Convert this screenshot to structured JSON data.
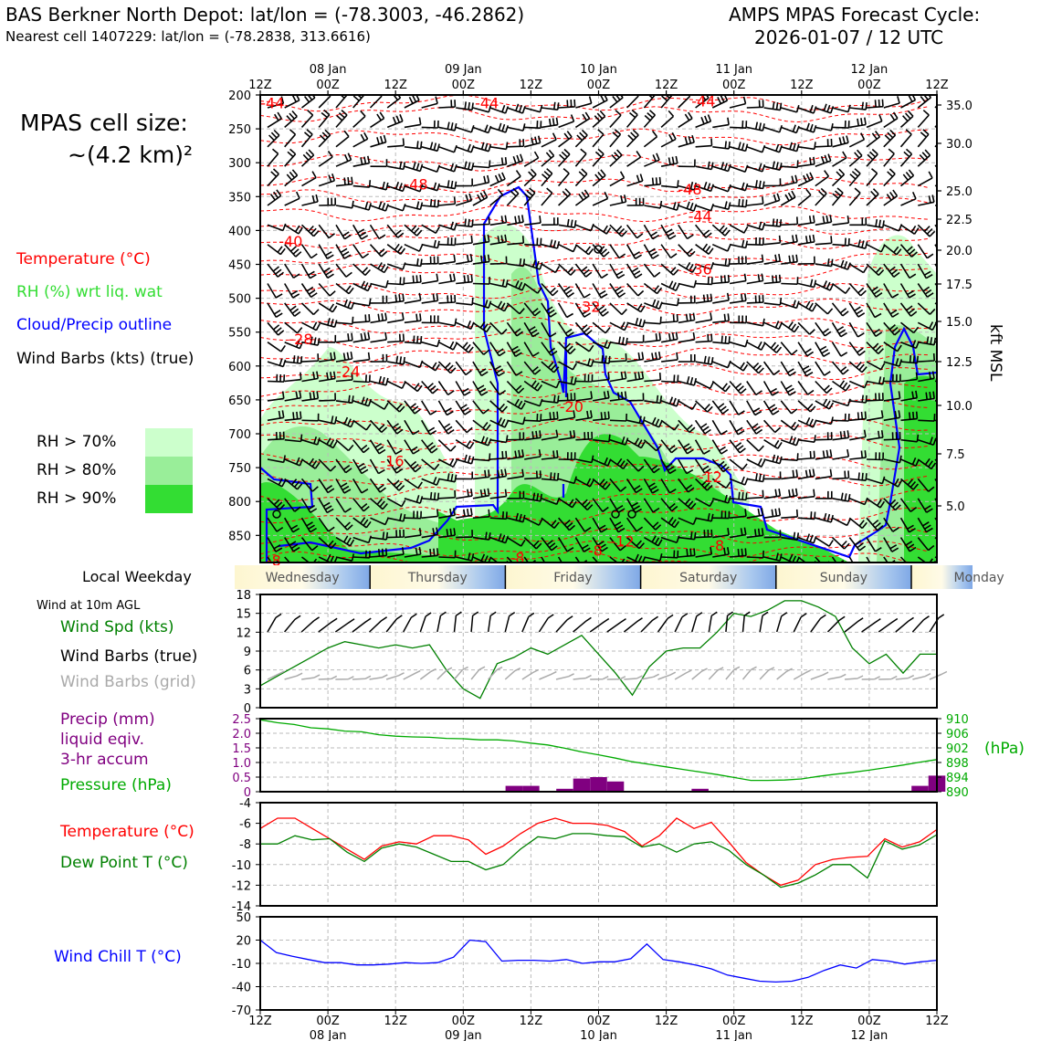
{
  "header": {
    "station": "BAS Berkner North Depot: lat/lon = (-78.3003, -46.2862)",
    "nearest": "Nearest cell 1407229: lat/lon = (-78.2838, 313.6616)",
    "model_line1": "AMPS MPAS Forecast Cycle:",
    "model_line2": "2026-01-07 / 12 UTC"
  },
  "cell_size": {
    "line1": "MPAS cell size:",
    "line2": "~(4.2 km)²"
  },
  "legend_top": [
    {
      "label": "Temperature (°C)",
      "color": "#ff0000"
    },
    {
      "label": "RH (%) wrt liq. wat",
      "color": "#33dd33"
    },
    {
      "label": "Cloud/Precip outline",
      "color": "#0000ff"
    },
    {
      "label": "Wind Barbs (kts) (true)",
      "color": "#000000"
    }
  ],
  "rh_legend": [
    {
      "label": "RH > 70%",
      "color": "#ccffcc"
    },
    {
      "label": "RH > 80%",
      "color": "#99ee99"
    },
    {
      "label": "RH > 90%",
      "color": "#33dd33"
    }
  ],
  "weekday": {
    "label": "Local Weekday",
    "days": [
      "Wednesday",
      "Thursday",
      "Friday",
      "Saturday",
      "Sunday",
      "Monday"
    ]
  },
  "panel_labels": {
    "wind_at": "Wind at 10m AGL",
    "wind_spd": "Wind Spd (kts)",
    "wind_barbs_true": "Wind Barbs (true)",
    "wind_barbs_grid": "Wind Barbs (grid)",
    "precip_1": "Precip (mm)",
    "precip_2": "liquid eqiv.",
    "precip_3": "3-hr accum",
    "pressure": "Pressure (hPa)",
    "hpa": "(hPa)",
    "temp": "Temperature (°C)",
    "dewpt": "Dew Point T (°C)",
    "windchill": "Wind Chill T (°C)",
    "kft": "kft MSL"
  },
  "time_axis": {
    "top_ticks": [
      "12Z",
      "00Z",
      "12Z",
      "00Z",
      "12Z",
      "00Z",
      "12Z",
      "00Z",
      "12Z",
      "00Z",
      "12Z"
    ],
    "date_labels": [
      "08 Jan",
      "09 Jan",
      "10 Jan",
      "11 Jan",
      "12 Jan"
    ]
  },
  "chart_data": [
    {
      "type": "area",
      "name": "cross-section",
      "x": [
        "07 Jan 12Z",
        "08 Jan 00Z",
        "08 Jan 12Z",
        "09 Jan 00Z",
        "09 Jan 12Z",
        "10 Jan 00Z",
        "10 Jan 12Z",
        "11 Jan 00Z",
        "11 Jan 12Z",
        "12 Jan 00Z",
        "12 Jan 12Z"
      ],
      "yaxis_left": "pressure (hPa)",
      "yticks_left": [
        200,
        250,
        300,
        350,
        400,
        450,
        500,
        550,
        600,
        650,
        700,
        750,
        800,
        850
      ],
      "yticks_right": [
        "35.0",
        "30.0",
        "25.0",
        "22.5",
        "20.0",
        "17.5",
        "15.0",
        "12.5",
        "10.0",
        "7.5",
        "5.0"
      ],
      "ylim": [
        890,
        200
      ],
      "temperature_labels": [
        {
          "text": "-44",
          "x": 0.18,
          "p": 213
        },
        {
          "text": "-44",
          "x": 3.35,
          "p": 213
        },
        {
          "text": "-44",
          "x": 6.55,
          "p": 210
        },
        {
          "text": "-48",
          "x": 2.3,
          "p": 333
        },
        {
          "text": "-48",
          "x": 6.35,
          "p": 340
        },
        {
          "text": "-44",
          "x": 6.5,
          "p": 380
        },
        {
          "text": "-40",
          "x": 0.45,
          "p": 417
        },
        {
          "text": "-36",
          "x": 6.5,
          "p": 458
        },
        {
          "text": "-32",
          "x": 4.85,
          "p": 513
        },
        {
          "text": "-28",
          "x": 0.6,
          "p": 561
        },
        {
          "text": "-24",
          "x": 1.3,
          "p": 609
        },
        {
          "text": "-20",
          "x": 4.6,
          "p": 661
        },
        {
          "text": "-16",
          "x": 1.95,
          "p": 741
        },
        {
          "text": "-12",
          "x": 6.65,
          "p": 765
        },
        {
          "text": "-12",
          "x": 5.35,
          "p": 860
        },
        {
          "text": "-8",
          "x": 3.8,
          "p": 884
        },
        {
          "text": "-8",
          "x": 4.95,
          "p": 873
        },
        {
          "text": "-8",
          "x": 6.75,
          "p": 866
        },
        {
          "text": "-8",
          "x": 0.2,
          "p": 888
        }
      ]
    },
    {
      "type": "line",
      "name": "wind",
      "ylim": [
        0,
        18
      ],
      "yticks": [
        0,
        3,
        6,
        9,
        12,
        15,
        18
      ],
      "series": [
        {
          "values": [
            3.5,
            5,
            6.5,
            8,
            9.5,
            10.5,
            10,
            9.5,
            10,
            9.5,
            10,
            6,
            3,
            1.5,
            7,
            8,
            9.5,
            8.5,
            10,
            11.5,
            8.5,
            5.5,
            2,
            6.5,
            9,
            9.5,
            9.5,
            12,
            15,
            14.5,
            15.5,
            17,
            17,
            16,
            14.5,
            9.5,
            7,
            8.5,
            5.5,
            8.5,
            8.5
          ]
        }
      ]
    },
    {
      "type": "bar",
      "name": "precip-pressure",
      "ylim": [
        0,
        2.5
      ],
      "yticks": [
        "0",
        "0.5",
        "1.0",
        "1.5",
        "2.0",
        "2.5"
      ],
      "yticks_right": [
        "890",
        "894",
        "898",
        "902",
        "906",
        "910"
      ],
      "precip": [
        0,
        0,
        0,
        0,
        0,
        0,
        0,
        0,
        0,
        0,
        0,
        0,
        0,
        0,
        0,
        0.2,
        0.2,
        0,
        0.1,
        0.45,
        0.5,
        0.35,
        0,
        0,
        0,
        0,
        0.1,
        0,
        0,
        0,
        0,
        0,
        0,
        0,
        0,
        0,
        0,
        0,
        0,
        0.2,
        0.55
      ],
      "pressure": [
        909.7,
        908.9,
        908.4,
        907.5,
        907.2,
        906.6,
        906.4,
        905.6,
        905.2,
        905,
        904.9,
        904.6,
        904.5,
        904.2,
        904.2,
        903.9,
        903.3,
        902.8,
        901.9,
        900.9,
        900.1,
        899.2,
        898.2,
        897.5,
        896.8,
        896.1,
        895.4,
        894.7,
        893.9,
        893.1,
        893.1,
        893.2,
        893.5,
        894.2,
        894.8,
        895.3,
        895.9,
        896.6,
        897.3,
        898.1,
        898.8
      ]
    },
    {
      "type": "line",
      "name": "temperature",
      "ylim": [
        -14,
        -4
      ],
      "yticks": [
        -4,
        -6,
        -8,
        -10,
        -12,
        -14
      ],
      "series": [
        {
          "name": "Temperature (°C)",
          "values": [
            -6.5,
            -5.5,
            -5.5,
            -6.5,
            -7.5,
            -8.5,
            -9.5,
            -8.2,
            -7.8,
            -8.0,
            -7.2,
            -7.2,
            -7.6,
            -9.0,
            -8.2,
            -7.0,
            -6.0,
            -5.5,
            -6.0,
            -6.0,
            -6.2,
            -6.8,
            -8.2,
            -7.2,
            -5.5,
            -6.5,
            -5.9,
            -7.8,
            -9.8,
            -11.0,
            -12.0,
            -11.5,
            -10.0,
            -9.5,
            -9.3,
            -9.2,
            -7.5,
            -8.3,
            -7.8,
            -6.6
          ]
        },
        {
          "name": "Dew Point T (°C)",
          "values": [
            -8.0,
            -8.0,
            -7.2,
            -7.6,
            -7.5,
            -8.8,
            -9.7,
            -8.4,
            -8.0,
            -8.3,
            -9.0,
            -9.7,
            -9.7,
            -10.5,
            -10.0,
            -8.5,
            -7.3,
            -7.5,
            -7.0,
            -7.0,
            -7.2,
            -7.3,
            -8.3,
            -8.0,
            -8.8,
            -8.0,
            -7.8,
            -8.6,
            -10.0,
            -11.0,
            -12.2,
            -11.8,
            -11.0,
            -10.0,
            -10.0,
            -11.3,
            -7.7,
            -8.5,
            -8.1,
            -7.1
          ]
        }
      ]
    },
    {
      "type": "line",
      "name": "windchill",
      "ylim": [
        -70,
        50
      ],
      "yticks": [
        50,
        20,
        -10,
        -40,
        -70
      ],
      "series": [
        {
          "values": [
            20,
            4,
            -1,
            -5,
            -9,
            -9,
            -12,
            -12,
            -11,
            -9,
            -10,
            -9,
            -2,
            20,
            18,
            -7,
            -6,
            -6,
            -7,
            -5,
            -10,
            -8,
            -8,
            -4,
            15,
            -5,
            -8,
            -12,
            -17,
            -25,
            -29,
            -33,
            -34,
            -33,
            -28,
            -19,
            -12,
            -16,
            -5,
            -7,
            -11,
            -8,
            -6
          ]
        }
      ]
    }
  ]
}
